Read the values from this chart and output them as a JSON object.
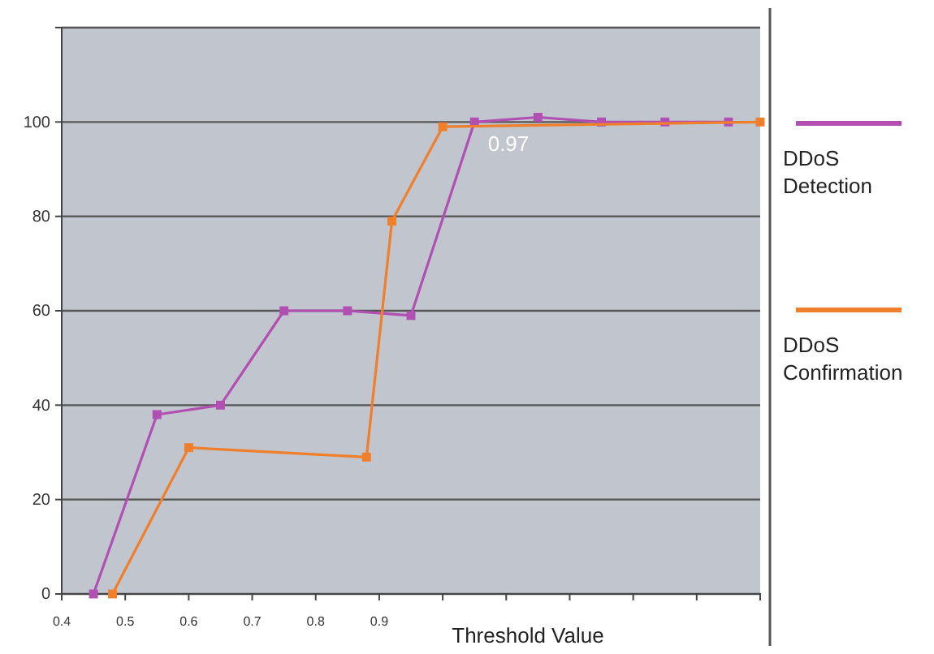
{
  "chart_data": {
    "type": "line",
    "xlabel": "Threshold Value",
    "xlim": [
      0.4,
      1.5
    ],
    "xticks": [
      0.4,
      0.5,
      0.6,
      0.7,
      0.8,
      0.9,
      {
        "value": 1.0,
        "label": null
      },
      {
        "value": 1.1,
        "label": null
      },
      {
        "value": 1.2,
        "label": null
      },
      {
        "value": 1.3,
        "label": null
      },
      {
        "value": 1.4,
        "label": null
      },
      {
        "value": 1.5,
        "label": null
      }
    ],
    "ylim": [
      0,
      120
    ],
    "yticks": [
      0,
      20,
      40,
      60,
      80,
      100,
      {
        "value": 120,
        "label": null
      }
    ],
    "grid": "y",
    "legend": "right",
    "marker": "square",
    "series": [
      {
        "name": "DDoS Detection",
        "color": "#b14fb3",
        "x": [
          0.45,
          0.55,
          0.65,
          0.75,
          0.85,
          0.95,
          1.05,
          1.15,
          1.25,
          1.35,
          1.45
        ],
        "values": [
          0,
          38,
          40,
          60,
          60,
          59,
          100,
          101,
          100,
          100,
          100
        ]
      },
      {
        "name": "DDoS Confirmation",
        "color": "#f07f2c",
        "x": [
          0.48,
          0.6,
          0.88,
          0.92,
          1.0,
          1.5
        ],
        "values": [
          0,
          31,
          29,
          79,
          99,
          100
        ]
      }
    ],
    "annotations": [
      "0.97"
    ]
  }
}
